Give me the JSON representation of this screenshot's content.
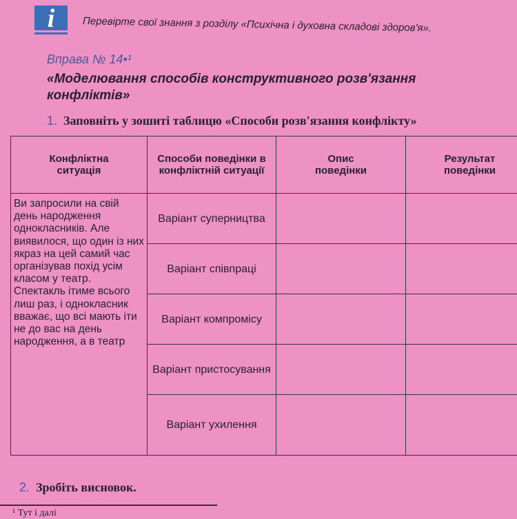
{
  "header": {
    "icon": "info-icon",
    "note": "Перевірте свої знання з розділу «Психічна і духовна складові здоров'я»."
  },
  "exercise": {
    "number": "Вправа № 14•¹",
    "title": "«Моделювання способів конструктивного розв'язання конфліктів»"
  },
  "task1": {
    "num": "1.",
    "text": "Заповніть у зошиті таблицю «Способи розв'язання конфлікту»"
  },
  "table": {
    "headers": [
      "Конфліктна ситуація",
      "Способи поведінки в конфліктній ситуації",
      "Опис поведінки",
      "Результат поведінки"
    ],
    "situation": "Ви запросили на свій день народження однокласників. Але виявилося, що один із них якраз на цей самий час організував похід усім класом у театр. Спектакль ітиме всього лиш раз, і однокласник вважає, що всі мають іти не до вас на день народження, а в театр",
    "options": [
      "Варіант суперництва",
      "Варіант співпраці",
      "Варіант компромісу",
      "Варіант пристосування",
      "Варіант ухилення"
    ]
  },
  "task2": {
    "num": "2.",
    "text": "Зробіть висновок."
  },
  "footnote": "¹ Тут і далі"
}
